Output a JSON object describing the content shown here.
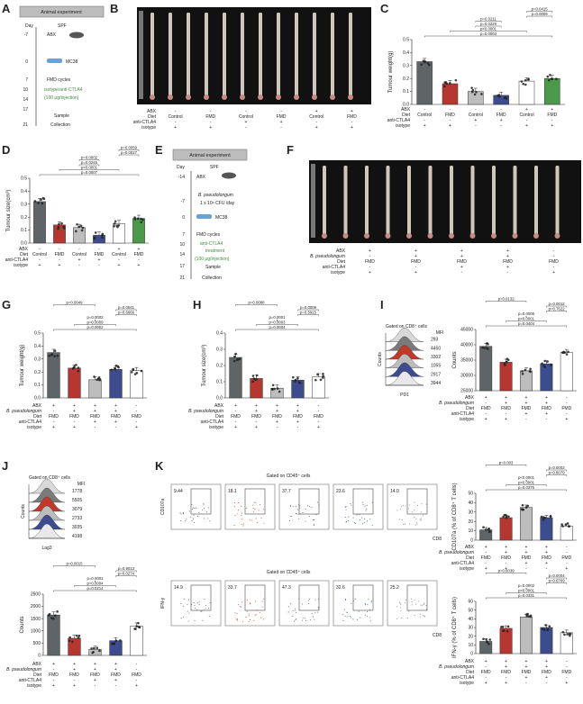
{
  "panels": {
    "A": {
      "letter": "A",
      "title": "Animal experiment",
      "day_label": "Day",
      "spf": "SPF",
      "days": [
        "-7",
        "0",
        "7",
        "10",
        "14",
        "17",
        "21"
      ],
      "abx": "ABX",
      "mc38": "MC38",
      "fmd": "FMD cycles",
      "treatment": "isotype/anti-CTLA4",
      "dose": "(100 μg/injection)",
      "sample": "Sample",
      "collection": "Collection"
    },
    "B": {
      "letter": "B",
      "row_labels": [
        "ABX",
        "Diet",
        "anti-CTLA4",
        "isotype"
      ],
      "abx": [
        "-",
        "-",
        "-",
        "-",
        "+",
        "+"
      ],
      "diet": [
        "Control",
        "FMD",
        "Control",
        "FMD",
        "Control",
        "FMD"
      ],
      "ctla4": [
        "-",
        "-",
        "+",
        "+",
        "-",
        "-"
      ],
      "iso": [
        "+",
        "+",
        "-",
        "-",
        "+",
        "+"
      ]
    },
    "C": {
      "letter": "C",
      "ylabel": "Tumour weight(g)",
      "yticks": [
        "0.0",
        "0.1",
        "0.2",
        "0.3",
        "0.4",
        "0.5"
      ],
      "pvals": [
        "p=0.0003",
        "p<0.0001",
        "p=0.0229",
        "p=0.0211",
        "p=0.0009",
        "p=0.0415"
      ],
      "row_labels": [
        "ABX",
        "Diet",
        "anti-CTLA4",
        "isotype"
      ],
      "abx": [
        "-",
        "-",
        "-",
        "-",
        "+",
        "+"
      ],
      "diet": [
        "Control",
        "FMD",
        "Control",
        "FMD",
        "Control",
        "FMD"
      ],
      "ctla4": [
        "-",
        "-",
        "+",
        "+",
        "-",
        "-"
      ],
      "iso": [
        "+",
        "+",
        "-",
        "-",
        "+",
        "+"
      ]
    },
    "D": {
      "letter": "D",
      "ylabel": "Tumour size(cm³)",
      "yticks": [
        "0.0",
        "0.1",
        "0.2",
        "0.3",
        "0.4",
        "0.5"
      ],
      "pvals": [
        "p=0.0007",
        "p<0.0001",
        "p=0.0245",
        "p=0.0002",
        "p=0.0027",
        "p=0.0059"
      ],
      "row_labels": [
        "ABX",
        "Diet",
        "anti-CTLA4",
        "isotype"
      ],
      "abx": [
        "-",
        "-",
        "-",
        "-",
        "+",
        "+"
      ],
      "diet": [
        "Control",
        "FMD",
        "Control",
        "FMD",
        "Control",
        "FMD"
      ],
      "ctla4": [
        "-",
        "-",
        "+",
        "+",
        "-",
        "-"
      ],
      "iso": [
        "+",
        "+",
        "-",
        "-",
        "+",
        "+"
      ]
    },
    "E": {
      "letter": "E",
      "title": "Animal experiment",
      "day_label": "Day",
      "spf": "SPF",
      "days": [
        "-14",
        "-7",
        "0",
        "7",
        "10",
        "14",
        "17",
        "21"
      ],
      "abx": "ABX",
      "bp": "B. pseudolongum",
      "cfu": "1 x 10⁹ CFU /day",
      "mc38": "MC38",
      "fmd": "FMD cycles",
      "treatment": "anti-CTLA4",
      "treatment2": "treatment",
      "dose": "(100 μg/injection)",
      "sample": "Sample",
      "collection": "Collection"
    },
    "F": {
      "letter": "F",
      "row_labels": [
        "ABX",
        "B. pseudolongum",
        "Diet",
        "anti-CTLA4",
        "isotype"
      ],
      "abx": [
        "+",
        "+",
        "+",
        "+",
        "-"
      ],
      "bp": [
        "-",
        "+",
        "+",
        "+",
        "-"
      ],
      "diet": [
        "FMD",
        "FMD",
        "FMD",
        "FMD",
        "FMD"
      ],
      "ctla4": [
        "-",
        "-",
        "+",
        "+",
        "-"
      ],
      "iso": [
        "+",
        "+",
        "-",
        "-",
        "+"
      ]
    },
    "G": {
      "letter": "G",
      "ylabel": "Tumour weight(g)",
      "yticks": [
        "0.0",
        "0.1",
        "0.2",
        "0.3",
        "0.4",
        "0.5"
      ],
      "pvals": [
        "p=0.0002",
        "p=0.0009",
        "p=0.0002",
        "p=0.6666",
        "p=0.0041",
        "p=0.0049"
      ]
    },
    "H": {
      "letter": "H",
      "ylabel": "Tumour size(cm³)",
      "yticks": [
        "0.0",
        "0.1",
        "0.2",
        "0.3",
        "0.4"
      ],
      "pvals": [
        "p=0.0004",
        "p=0.0003",
        "p=0.0001",
        "p=0.5915",
        "p=0.0009",
        "p=0.0088"
      ]
    },
    "I": {
      "letter": "I",
      "gate": "Gated on CD8⁺ cells",
      "mfi": "MFI",
      "mfi_vals": [
        "293",
        "4450",
        "3302",
        "1055",
        "2917",
        "3944"
      ],
      "xlabel": "PD1",
      "ylabel": "Counts",
      "ylabel2": "MFI of PD1",
      "yticks": [
        "25000",
        "30000",
        "35000",
        "40000",
        "45000"
      ],
      "pvals": [
        "p=0.0404",
        "p<0.0001",
        "p=0.0005",
        "p=0.7622",
        "p=0.0012",
        "p=0.0132"
      ]
    },
    "J": {
      "letter": "J",
      "gate": "Gated on CD8⁺ cells",
      "mfi": "MFI",
      "mfi_vals": [
        "1778",
        "5505",
        "3079",
        "2733",
        "3035",
        "4198"
      ],
      "xlabel": "Lag3",
      "ylabel": "Counts",
      "ylabel2": "MFI of Lag3",
      "yticks": [
        "0",
        "500",
        "1000",
        "1500",
        "2000",
        "2500"
      ],
      "pvals": [
        "p=0.0214",
        "p=0.0004",
        "p=0.0001",
        "p=0.0274",
        "p=0.9013",
        "p=0.0015"
      ]
    },
    "K": {
      "letter": "K",
      "gate1": "Gated on CD45⁺ cells",
      "gate2": "Gated on CD45⁺ cells",
      "top_vals": [
        "9.44",
        "18.1",
        "37.7",
        "23.6",
        "14.0"
      ],
      "bot_vals": [
        "14.9",
        "33.7",
        "47.3",
        "32.6",
        "25.2"
      ],
      "top_ylabel": "CD107a",
      "bot_ylabel": "IFN-γ",
      "xlabel": "CD8",
      "ylabel_top_chart": "CD107a (% of CD8⁺ T cells)",
      "ylabel_bot_chart": "IFN-γ (% of CD8⁺ T cells)",
      "top_yticks": [
        "0",
        "10",
        "20",
        "30",
        "40",
        "50"
      ],
      "bot_yticks": [
        "0",
        "10",
        "20",
        "30",
        "40",
        "50",
        "60"
      ],
      "top_pvals": [
        "p=0.0375",
        "p<0.0001",
        "p<0.0001",
        "p=0.8079",
        "p=0.0002",
        "p=0.003"
      ],
      "bot_pvals": [
        "p=0.0331",
        "p<0.0001",
        "p=0.0002",
        "p=0.6769",
        "p=0.0004",
        "p=0.0039"
      ]
    },
    "common5": {
      "row_labels": [
        "ABX",
        "B. pseudolongum",
        "Diet",
        "anti-CTLA4",
        "isotype"
      ],
      "abx": [
        "+",
        "+",
        "+",
        "+",
        "-"
      ],
      "bp": [
        "-",
        "+",
        "+",
        "+",
        "-"
      ],
      "diet": [
        "FMD",
        "FMD",
        "FMD",
        "FMD",
        "FMD"
      ],
      "ctla4": [
        "-",
        "-",
        "+",
        "+",
        "-"
      ],
      "iso": [
        "+",
        "+",
        "-",
        "-",
        "+"
      ]
    },
    "K_diet": {
      "diet": [
        "FMD",
        "FMD",
        "FMD",
        "FMD",
        "FMD"
      ]
    }
  },
  "colors": {
    "dark_gray": "#5f6466",
    "red": "#b5372f",
    "light_gray": "#bdbdbd",
    "navy": "#3c4c8e",
    "white": "#ffffff",
    "green": "#4a9a4a",
    "abx_text": "#3b3b3b",
    "treat_green": "#3e8e3e"
  },
  "chart_data": [
    {
      "type": "bar",
      "panel": "C",
      "categories": [
        "Control",
        "FMD",
        "Control",
        "FMD",
        "Control",
        "FMD"
      ],
      "values": [
        0.33,
        0.16,
        0.1,
        0.07,
        0.18,
        0.2
      ],
      "ylabel": "Tumour weight(g)",
      "ylim": [
        0,
        0.5
      ]
    },
    {
      "type": "bar",
      "panel": "D",
      "categories": [
        "Control",
        "FMD",
        "Control",
        "FMD",
        "Control",
        "FMD"
      ],
      "values": [
        0.32,
        0.14,
        0.12,
        0.06,
        0.15,
        0.19
      ],
      "ylabel": "Tumour size(cm³)",
      "ylim": [
        0,
        0.5
      ]
    },
    {
      "type": "bar",
      "panel": "G",
      "categories": [
        "FMD",
        "FMD",
        "FMD",
        "FMD",
        "FMD"
      ],
      "values": [
        0.35,
        0.23,
        0.14,
        0.22,
        0.21
      ],
      "ylabel": "Tumour weight(g)",
      "ylim": [
        0,
        0.5
      ]
    },
    {
      "type": "bar",
      "panel": "H",
      "categories": [
        "FMD",
        "FMD",
        "FMD",
        "FMD",
        "FMD"
      ],
      "values": [
        0.25,
        0.12,
        0.06,
        0.11,
        0.13
      ],
      "ylabel": "Tumour size(cm³)",
      "ylim": [
        0,
        0.4
      ]
    },
    {
      "type": "bar",
      "panel": "I",
      "categories": [
        "FMD",
        "FMD",
        "FMD",
        "FMD",
        "FMD"
      ],
      "values": [
        39500,
        34300,
        31500,
        33800,
        37500
      ],
      "ylabel": "MFI of PD1",
      "ylim": [
        25000,
        45000
      ]
    },
    {
      "type": "bar",
      "panel": "J",
      "categories": [
        "FMD",
        "FMD",
        "FMD",
        "FMD",
        "FMD"
      ],
      "values": [
        1650,
        700,
        250,
        600,
        1200
      ],
      "ylabel": "MFI of Lag3",
      "ylim": [
        0,
        2500
      ]
    },
    {
      "type": "bar",
      "panel": "K-top",
      "categories": [
        "FMD",
        "FMD",
        "FMD",
        "FMD",
        "FMD"
      ],
      "values": [
        11,
        24,
        35,
        24,
        15
      ],
      "ylabel": "CD107a (% of CD8⁺ T cells)",
      "ylim": [
        0,
        50
      ]
    },
    {
      "type": "bar",
      "panel": "K-bottom",
      "categories": [
        "FMD",
        "FMD",
        "FMD",
        "FMD",
        "FMD"
      ],
      "values": [
        14,
        29,
        42,
        30,
        24
      ],
      "ylabel": "IFN-γ (% of CD8⁺ T cells)",
      "ylim": [
        0,
        60
      ]
    }
  ]
}
